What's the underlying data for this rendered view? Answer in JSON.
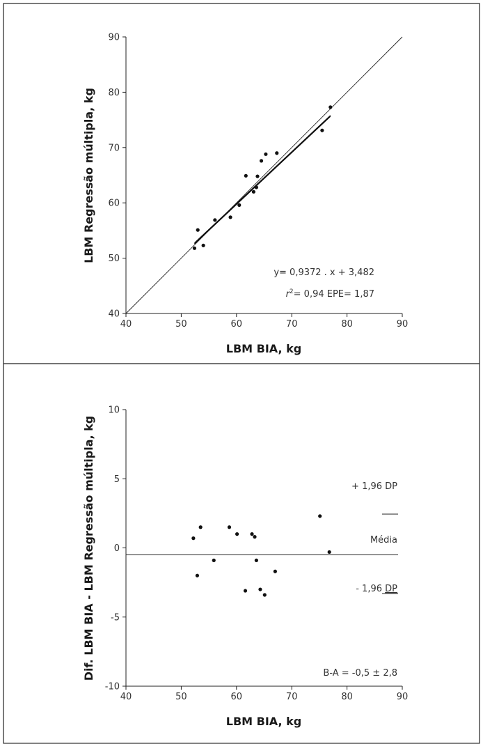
{
  "chart_data": [
    {
      "type": "scatter",
      "xlabel": "LBM BIA, kg",
      "ylabel": "LBM Regressão múltipla, kg",
      "xlim": [
        40,
        90
      ],
      "ylim": [
        40,
        90
      ],
      "xticks": [
        "40",
        "50",
        "60",
        "70",
        "80",
        "90"
      ],
      "yticks": [
        "40",
        "50",
        "60",
        "70",
        "80",
        "90"
      ],
      "points": [
        {
          "x": 52.4,
          "y": 51.8
        },
        {
          "x": 53.0,
          "y": 55.1
        },
        {
          "x": 54.0,
          "y": 52.3
        },
        {
          "x": 56.1,
          "y": 56.9
        },
        {
          "x": 58.9,
          "y": 57.4
        },
        {
          "x": 60.5,
          "y": 59.6
        },
        {
          "x": 61.7,
          "y": 64.9
        },
        {
          "x": 63.1,
          "y": 62.0
        },
        {
          "x": 63.6,
          "y": 62.8
        },
        {
          "x": 63.8,
          "y": 64.8
        },
        {
          "x": 64.5,
          "y": 67.6
        },
        {
          "x": 65.3,
          "y": 68.8
        },
        {
          "x": 67.3,
          "y": 69.0
        },
        {
          "x": 75.5,
          "y": 73.1
        },
        {
          "x": 77.0,
          "y": 77.3
        }
      ],
      "identity_line": {
        "x": [
          40,
          90
        ],
        "y": [
          40,
          90
        ]
      },
      "regression_line": {
        "slope": 0.9372,
        "intercept": 3.482,
        "x_range": [
          52.4,
          77.0
        ]
      },
      "equation_text": "y= 0,9372 . x + 3,482",
      "r2_prefix": "r",
      "r2_sup": "2",
      "r2_rest": "= 0,94 EPE= 1,87"
    },
    {
      "type": "scatter",
      "xlabel": "LBM BIA, kg",
      "ylabel": "Dif. LBM BIA - LBM Regressão múltipla, kg",
      "xlim": [
        40,
        90
      ],
      "ylim": [
        -10,
        10
      ],
      "xticks": [
        "40",
        "50",
        "60",
        "70",
        "80",
        "90"
      ],
      "yticks": [
        "-10",
        "-5",
        "0",
        "5",
        "10"
      ],
      "points": [
        {
          "x": 52.2,
          "y": 0.7
        },
        {
          "x": 52.9,
          "y": -2.0
        },
        {
          "x": 53.5,
          "y": 1.5
        },
        {
          "x": 55.9,
          "y": -0.9
        },
        {
          "x": 58.7,
          "y": 1.5
        },
        {
          "x": 60.1,
          "y": 1.0
        },
        {
          "x": 61.6,
          "y": -3.1
        },
        {
          "x": 62.8,
          "y": 1.0
        },
        {
          "x": 63.3,
          "y": 0.8
        },
        {
          "x": 63.6,
          "y": -0.9
        },
        {
          "x": 64.3,
          "y": -3.0
        },
        {
          "x": 65.1,
          "y": -3.4
        },
        {
          "x": 67.0,
          "y": -1.7
        },
        {
          "x": 75.1,
          "y": 2.3
        },
        {
          "x": 76.8,
          "y": -0.3
        }
      ],
      "mean_line_y": -0.5,
      "mean_label": "Média",
      "upper_label": "+ 1,96 DP",
      "lower_label_prefix": "- 1,96 ",
      "lower_label_dp": "DP",
      "ba_text": "B-A = -0,5 ± 2,8"
    }
  ]
}
